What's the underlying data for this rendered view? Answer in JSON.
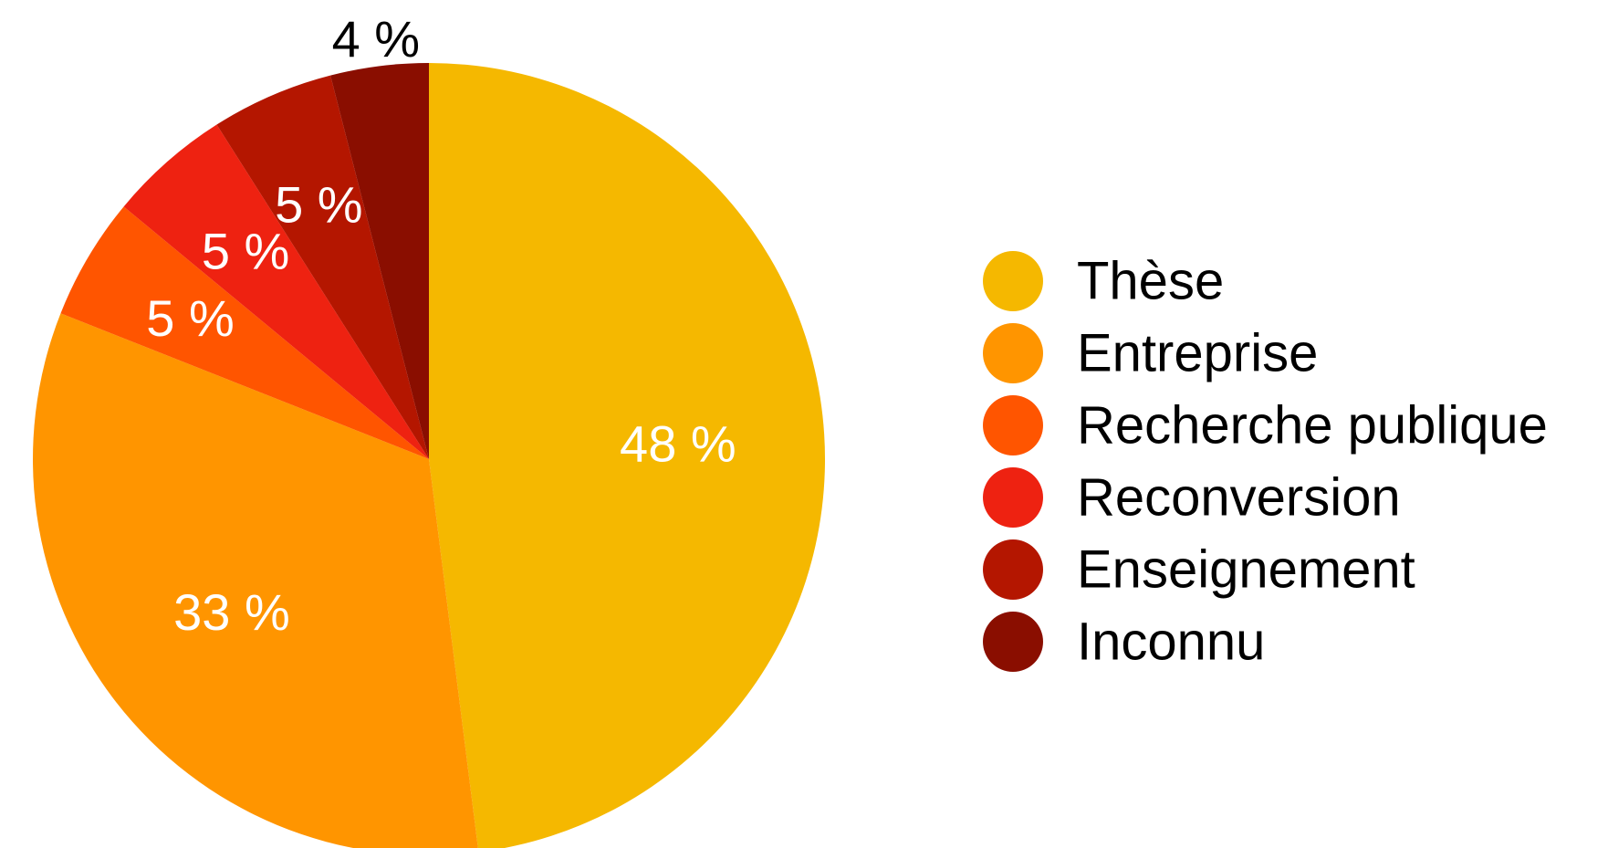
{
  "chart_data": {
    "type": "pie",
    "categories": [
      "Thèse",
      "Entreprise",
      "Recherche publique",
      "Reconversion",
      "Enseignement",
      "Inconnu"
    ],
    "values": [
      48,
      33,
      5,
      5,
      5,
      4
    ],
    "labels": [
      "48 %",
      "33 %",
      "5 %",
      "5 %",
      "5 %",
      "4 %"
    ],
    "colors": [
      "#F5B800",
      "#FF9500",
      "#FF5500",
      "#EE2211",
      "#B41600",
      "#8A0E00"
    ],
    "legend_position": "right"
  }
}
